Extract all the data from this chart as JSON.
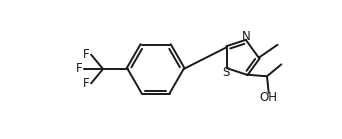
{
  "background_color": "#ffffff",
  "line_color": "#1a1a1a",
  "line_width": 1.4,
  "font_size": 8.5,
  "fig_width": 3.42,
  "fig_height": 1.39,
  "dpi": 100,
  "xlim": [
    0,
    10
  ],
  "ylim": [
    0,
    4.07
  ]
}
